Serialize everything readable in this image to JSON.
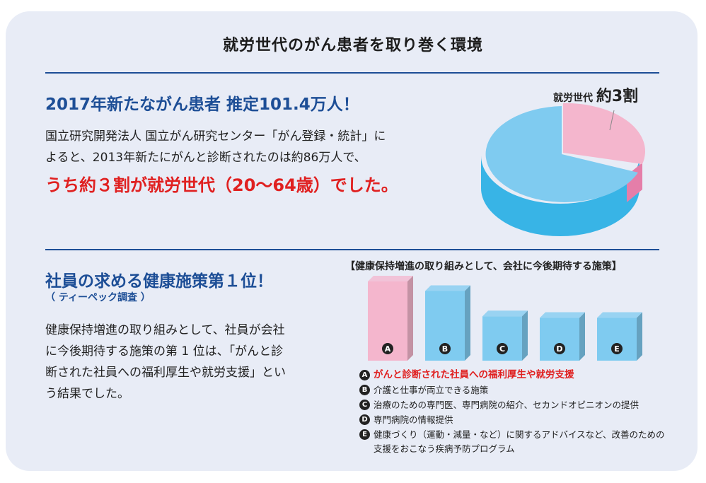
{
  "title": "就労世代のがん患者を取り巻く環境",
  "section1": {
    "heading": "2017年新たながん患者 推定101.4万人！",
    "body_line1": "国立研究開発法人 国立がん研究センター「がん登録・統計」に",
    "body_line2": "よると、2013年新たにがんと診断されたのは約86万人で、",
    "highlight": "うち約３割が就労世代（20〜64歳）でした。"
  },
  "pie": {
    "label_small": "就労世代",
    "label_big": "約3割",
    "share_working": 0.3,
    "colors": {
      "working": "#f4b6cd",
      "working_side": "#e57ea9",
      "rest": "#7fcbf0",
      "rest_side": "#38b4e6"
    }
  },
  "section2": {
    "heading": "社員の求める健康施策第１位！",
    "subheading": "（ ティーペック調査 ）",
    "body_line1": "健康保持増進の取り組みとして、社員が会社",
    "body_line2": "に今後期待する施策の第 1 位は、「がんと診",
    "body_line3": "断された社員への福利厚生や就労支援」とい",
    "body_line4": "う結果でした。"
  },
  "bar_chart_title": "【健康保持増進の取り組みとして、会社に今後期待する施策】",
  "chart_data": {
    "type": "bar",
    "title": "【健康保持増進の取り組みとして、会社に今後期待する施策】",
    "categories": [
      "A",
      "B",
      "C",
      "D",
      "E"
    ],
    "values": [
      100,
      88,
      56,
      54,
      54
    ],
    "highlight_color": "#f4b6cd",
    "bar_color": "#7fcbf0",
    "ylim": [
      0,
      100
    ]
  },
  "legend": {
    "a": "がんと診断された社員への福利厚生や就労支援",
    "b": "介護と仕事が両立できる施策",
    "c": "治療のための専門医、専門病院の紹介、セカンドオピニオンの提供",
    "d": "専門病院の情報提供",
    "e_line1": "健康づくり（運動・減量・など）に関するアドバイスなど、改善のための",
    "e_line2": "支援をおこなう疾病予防プログラム"
  }
}
